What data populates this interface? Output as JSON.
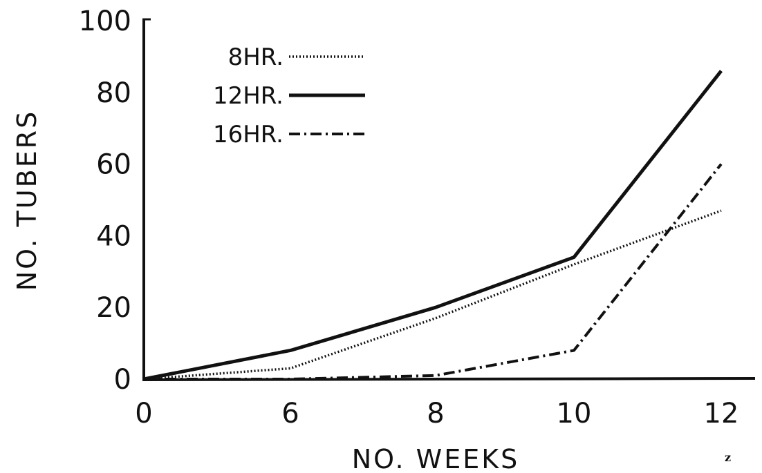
{
  "chart_data": {
    "type": "line",
    "title": "",
    "xlabel": "NO. WEEKS",
    "ylabel": "NO. TUBERS",
    "x": [
      0,
      6,
      8,
      10,
      12
    ],
    "x_tick_labels": [
      "0",
      "6",
      "8",
      "10",
      "12"
    ],
    "y_ticks": [
      0,
      20,
      40,
      60,
      80,
      100
    ],
    "y_tick_labels": [
      "0",
      "20",
      "40",
      "60",
      "80",
      "100"
    ],
    "ylim": [
      0,
      100
    ],
    "grid": false,
    "legend_position": "top-left",
    "series": [
      {
        "name": "8HR.",
        "style": "dotted",
        "values": [
          0,
          3,
          17,
          32,
          47
        ]
      },
      {
        "name": "12HR.",
        "style": "solid",
        "values": [
          0,
          8,
          20,
          34,
          86
        ]
      },
      {
        "name": "16HR.",
        "style": "dash-dot",
        "values": [
          0,
          0,
          1,
          8,
          60
        ]
      }
    ],
    "annotations": [
      "z"
    ]
  }
}
